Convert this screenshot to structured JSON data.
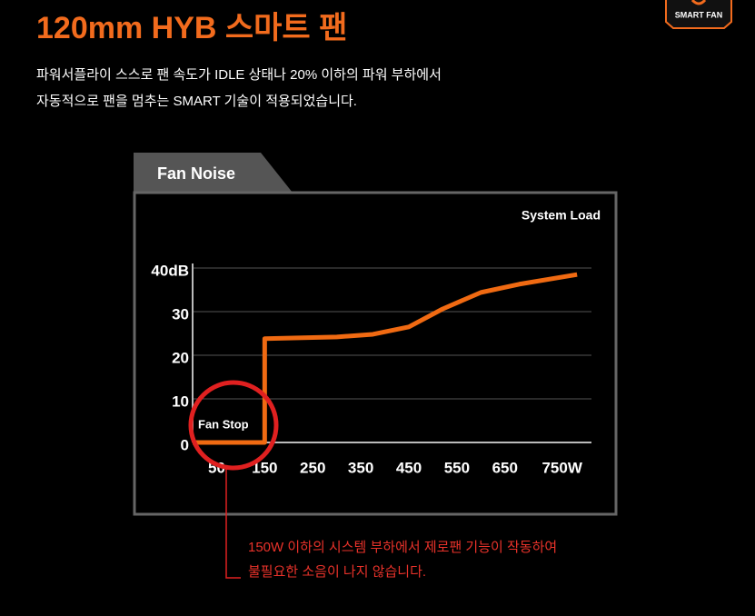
{
  "header": {
    "title": "120mm HYB 스마트 팬",
    "logo": "SMART FAN",
    "description": [
      "파워서플라이 스스로 팬 속도가 IDLE 상태나 20% 이하의 파워  부하에서",
      "자동적으로 팬을 멈추는 SMART 기술이 적용되었습니다."
    ]
  },
  "chart_data": {
    "type": "line",
    "title": "Fan Noise",
    "x_label": "System Load",
    "x": [
      0,
      150,
      150,
      300,
      375,
      450,
      520,
      600,
      680,
      800
    ],
    "series": [
      {
        "color": "#f06a12",
        "values": [
          0,
          0,
          23.8,
          24.2,
          24.8,
          26.5,
          30.6,
          34.4,
          36.3,
          38.5
        ]
      }
    ],
    "xlim": [
      0,
      830
    ],
    "ylim": [
      0,
      40
    ],
    "xticks": [
      50,
      150,
      250,
      350,
      450,
      550,
      650,
      {
        "value": 750,
        "label": "750W"
      }
    ],
    "yticks": [
      0,
      10,
      20,
      30,
      {
        "value": 40,
        "label": "40dB"
      }
    ],
    "grid": true,
    "annotation": "Fan Stop",
    "note": [
      "150W 이하의 시스템 부하에서 제로팬 기능이 작동하여",
      "불필요한 소음이 나지 않습니다."
    ]
  }
}
